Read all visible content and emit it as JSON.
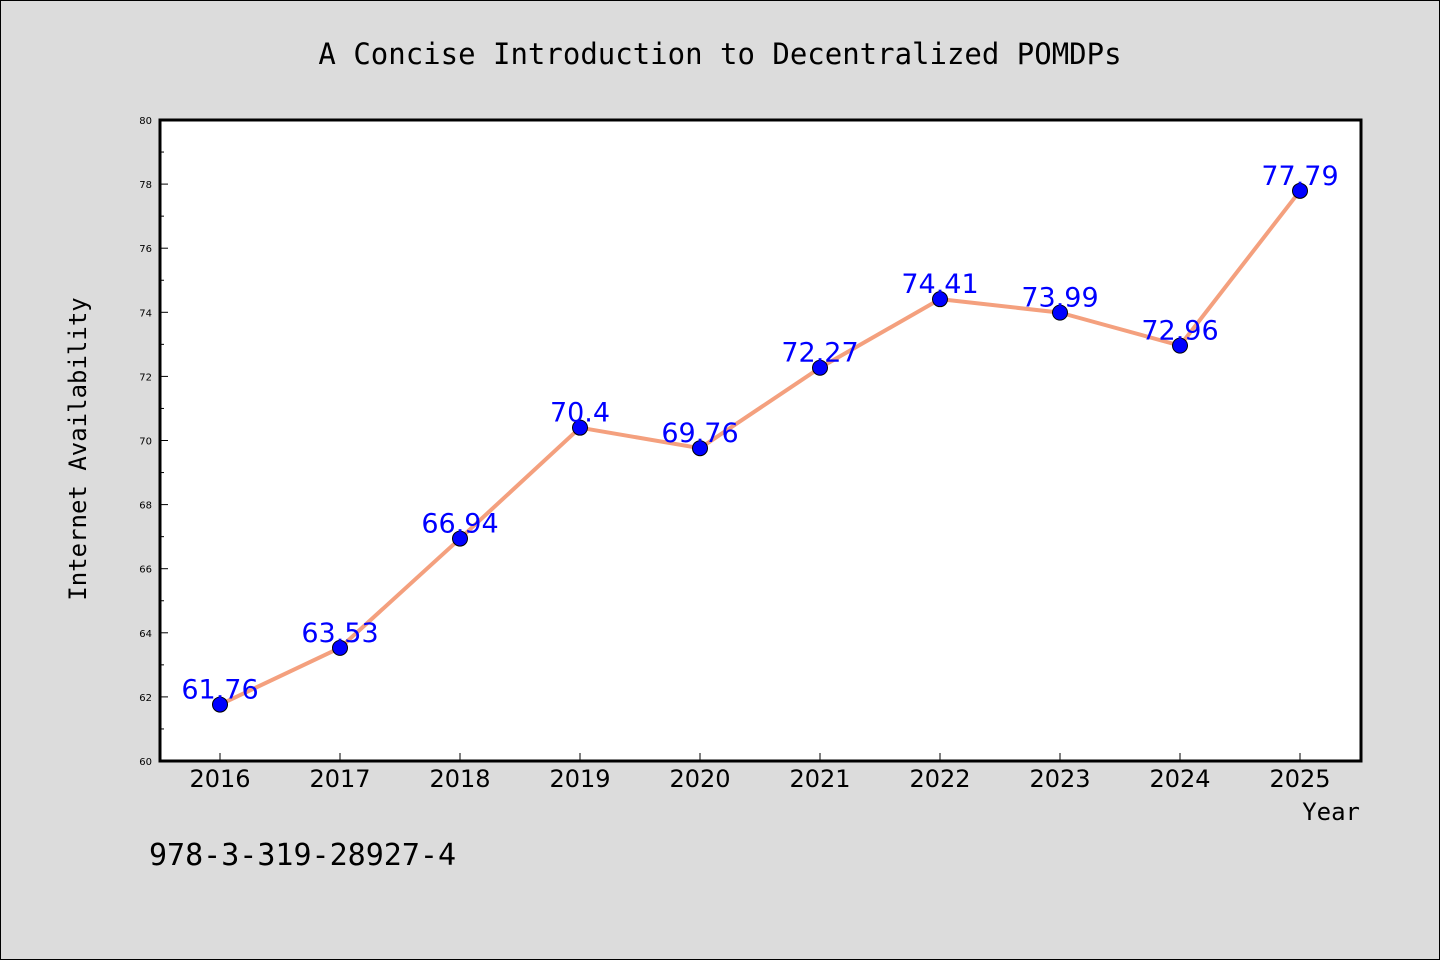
{
  "caption": "978-3-319-28927-4",
  "colors": {
    "background": "#dcdcdc",
    "plot_area": "#ffffff",
    "line": "#f4a07e",
    "marker": "#0000ff",
    "data_label": "#0000ff"
  },
  "chart_data": {
    "type": "line",
    "title": "A Concise Introduction to Decentralized POMDPs",
    "xlabel": "Year",
    "ylabel": "Internet Availability",
    "categories": [
      "2016",
      "2017",
      "2018",
      "2019",
      "2020",
      "2021",
      "2022",
      "2023",
      "2024",
      "2025"
    ],
    "values": [
      61.76,
      63.53,
      66.94,
      70.4,
      69.76,
      72.27,
      74.41,
      73.99,
      72.96,
      77.79
    ],
    "ylim": [
      60,
      80
    ],
    "yticks": [
      60,
      62,
      64,
      66,
      68,
      70,
      72,
      74,
      76,
      78,
      80
    ],
    "grid": false,
    "legend": "none",
    "marker": "circle"
  }
}
